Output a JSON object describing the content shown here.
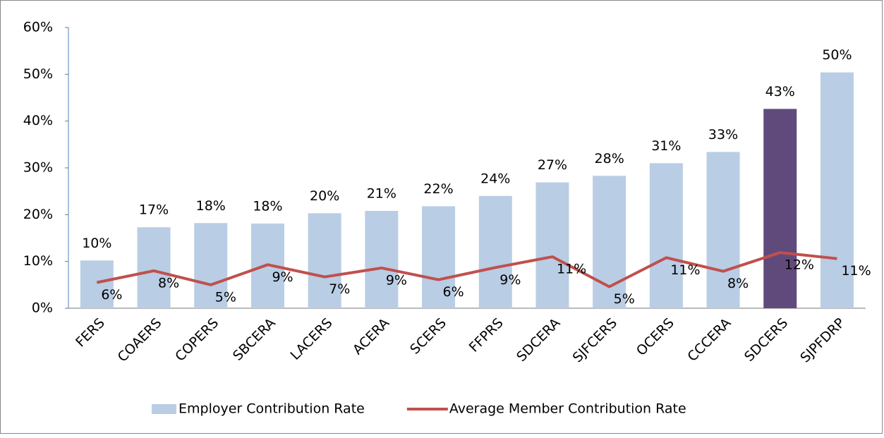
{
  "chart_data": {
    "type": "bar",
    "categories": [
      "FERS",
      "COAERS",
      "COPERS",
      "SBCERA",
      "LACERS",
      "ACERA",
      "SCERS",
      "FFPRS",
      "SDCERA",
      "SJFCERS",
      "OCERS",
      "CCCERA",
      "SDCERS",
      "SJPFDRP"
    ],
    "series": [
      {
        "name": "Employer Contribution Rate",
        "type": "bar",
        "color": "#b9cde5",
        "colors": [
          "#b9cde5",
          "#b9cde5",
          "#b9cde5",
          "#b9cde5",
          "#b9cde5",
          "#b9cde5",
          "#b9cde5",
          "#b9cde5",
          "#b9cde5",
          "#b9cde5",
          "#b9cde5",
          "#b9cde5",
          "#604a7b",
          "#b9cde5"
        ],
        "values": [
          10.2,
          17.3,
          18.2,
          18.1,
          20.3,
          20.8,
          21.8,
          24,
          26.9,
          28.3,
          31,
          33.4,
          42.6,
          50.4
        ],
        "value_labels": [
          "10%",
          "17%",
          "18%",
          "18%",
          "20%",
          "21%",
          "22%",
          "24%",
          "27%",
          "28%",
          "31%",
          "33%",
          "43%",
          "50%"
        ]
      },
      {
        "name": "Average Member Contribution Rate",
        "type": "line",
        "color": "#c0504d",
        "values": [
          5.5,
          8,
          5,
          9.3,
          6.7,
          8.6,
          6.1,
          8.7,
          11,
          4.6,
          10.8,
          7.9,
          11.9,
          10.6
        ],
        "value_labels": [
          "6%",
          "8%",
          "5%",
          "9%",
          "7%",
          "9%",
          "6%",
          "9%",
          "11%",
          "5%",
          "11%",
          "8%",
          "12%",
          "11%"
        ]
      }
    ],
    "ylim": [
      0,
      60
    ],
    "yticks": [
      {
        "value": 0,
        "label": "0%"
      },
      {
        "value": 10,
        "label": "10%"
      },
      {
        "value": 20,
        "label": "20%"
      },
      {
        "value": 30,
        "label": "30%"
      },
      {
        "value": 40,
        "label": "40%"
      },
      {
        "value": 50,
        "label": "50%"
      },
      {
        "value": 60,
        "label": "60%"
      }
    ],
    "grid": false,
    "legend": "bottom"
  }
}
